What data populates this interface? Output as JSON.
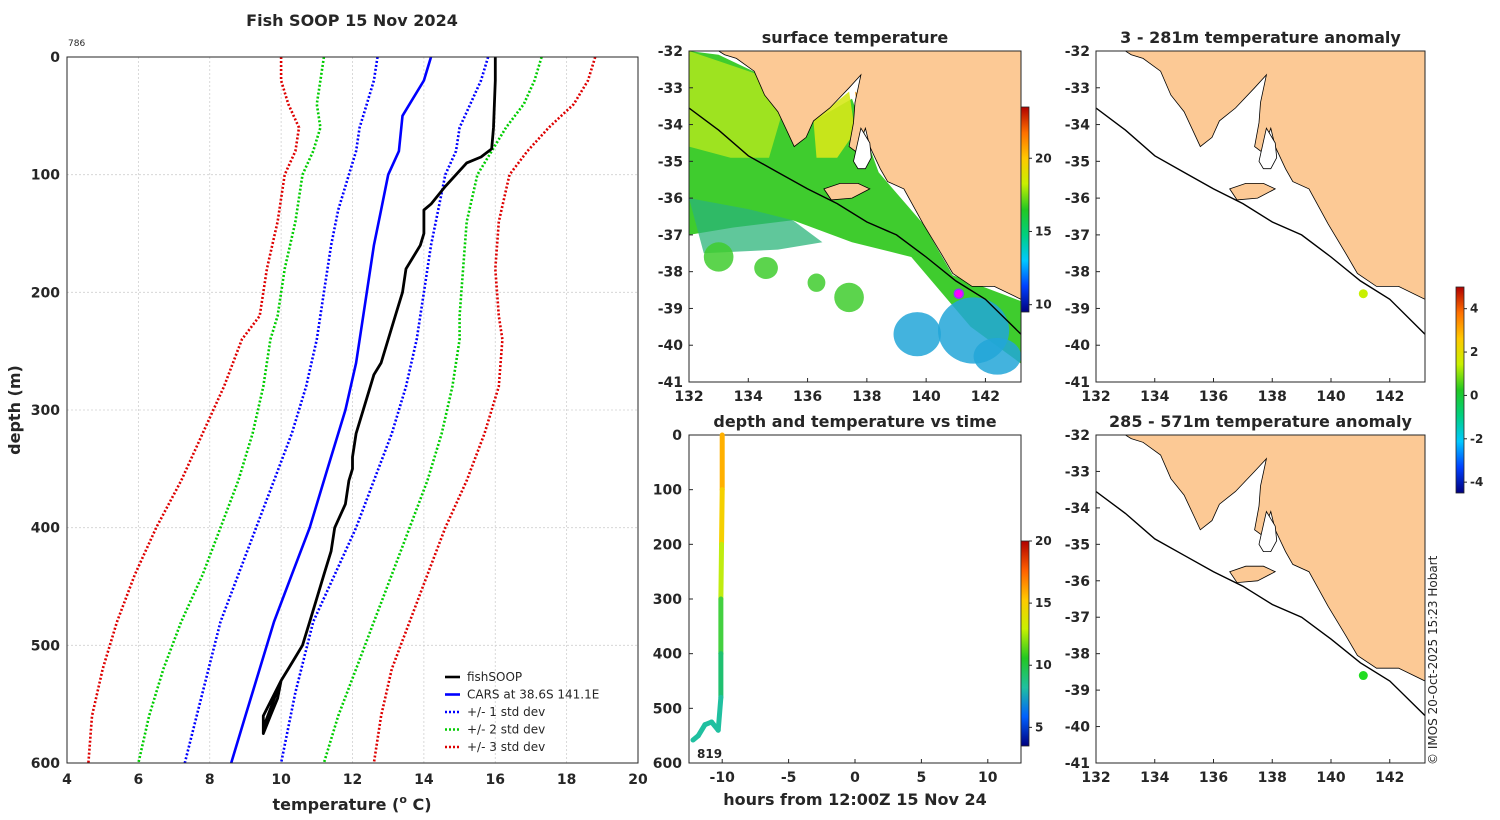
{
  "chart_data": [
    {
      "type": "line",
      "title": "Fish SOOP 15 Nov 2024",
      "xlabel": "temperature (",
      "xlabel_sup": "o",
      "xlabel_tail": " C)",
      "ylabel": "depth (m)",
      "xlim": [
        4,
        20
      ],
      "ylim": [
        600,
        0
      ],
      "xticks": [
        "4",
        "6",
        "8",
        "10",
        "12",
        "14",
        "16",
        "18",
        "20"
      ],
      "yticks": [
        "0",
        "100",
        "200",
        "300",
        "400",
        "500",
        "600"
      ],
      "corner_label": "786",
      "grid": true,
      "legend_position": "bottom-right",
      "series": [
        {
          "name": "fishSOOP",
          "color": "#000000",
          "style": "solid",
          "x": [
            16,
            16,
            15.95,
            15.9,
            15.6,
            15.2,
            14.9,
            14.6,
            14.2,
            14.0,
            14.0,
            13.9,
            13.7,
            13.5,
            13.4,
            13.2,
            13.0,
            12.8,
            12.6,
            12.4,
            12.1,
            12.0,
            12.0,
            11.9,
            11.8,
            11.5,
            11.4,
            11.2,
            11.0,
            10.8,
            10.6,
            10.4,
            10.2,
            10.0,
            9.9,
            9.7,
            9.5,
            9.5,
            10.0,
            9.5
          ],
          "y": [
            0,
            20,
            60,
            78,
            85,
            90,
            100,
            110,
            125,
            130,
            150,
            160,
            170,
            180,
            200,
            220,
            240,
            260,
            270,
            290,
            320,
            340,
            350,
            360,
            380,
            400,
            420,
            440,
            460,
            480,
            500,
            510,
            520,
            530,
            545,
            560,
            575,
            560,
            530,
            570
          ]
        },
        {
          "name": "CARS at 38.6S 141.1E",
          "color": "#0000ff",
          "style": "solid",
          "x": [
            14.2,
            14.0,
            13.6,
            13.4,
            13.3,
            13.0,
            12.8,
            12.6,
            12.4,
            12.1,
            11.8,
            11.3,
            10.8,
            10.3,
            9.8,
            9.4,
            9.0,
            8.6
          ],
          "y": [
            0,
            20,
            40,
            50,
            80,
            100,
            130,
            160,
            200,
            260,
            300,
            350,
            400,
            440,
            480,
            520,
            560,
            600
          ]
        },
        {
          "name": "+/- 1 std dev",
          "color": "#0000ff",
          "style": "dotted",
          "x": [
            15.8,
            15.6,
            15.3,
            15.0,
            14.8,
            14.5,
            14.3,
            14.0,
            13.8,
            13.4,
            13.0,
            12.6,
            12.1,
            11.4,
            10.8,
            10.3,
            10.0,
            12.7,
            12.6,
            12.4,
            12.2,
            12.0,
            11.8,
            11.6,
            11.4,
            11.2,
            10.9,
            10.6,
            10.1,
            9.5,
            8.9,
            8.4,
            7.9,
            7.4,
            7.2
          ],
          "y": [
            0,
            20,
            40,
            60,
            80,
            100,
            150,
            200,
            250,
            300,
            350,
            400,
            450,
            500,
            550,
            600,
            600,
            0,
            20,
            40,
            60,
            80,
            100,
            150,
            200,
            250,
            300,
            350,
            400,
            450,
            500,
            550,
            580,
            600,
            600
          ],
          "split_at": 17
        }
      ],
      "legend": [
        "fishSOOP",
        "CARS at 38.6S 141.1E",
        "+/- 1 std dev",
        "+/- 2 std dev",
        "+/- 3 std dev"
      ],
      "legend_colors": [
        "#000000",
        "#0000ff",
        "#0000ff",
        "#00cc00",
        "#dd0000"
      ],
      "envelopes": {
        "1": {
          "left_x": [
            12.7,
            12.6,
            12.4,
            12.2,
            12.1,
            11.9,
            11.6,
            11.4,
            11.2,
            11.0,
            10.7,
            10.3,
            9.8,
            9.3,
            8.8,
            8.3,
            7.8,
            7.3
          ],
          "right_x": [
            15.8,
            15.6,
            15.3,
            15.0,
            14.9,
            14.6,
            14.4,
            14.2,
            14.0,
            13.8,
            13.5,
            13.1,
            12.6,
            12.1,
            11.5,
            10.9,
            10.4,
            10.0
          ],
          "y": [
            0,
            20,
            40,
            60,
            80,
            100,
            130,
            160,
            200,
            240,
            280,
            320,
            360,
            400,
            440,
            480,
            540,
            600
          ]
        },
        "2": {
          "left_x": [
            11.2,
            11.1,
            11.0,
            11.1,
            10.9,
            10.6,
            10.4,
            10.1,
            9.9,
            9.7,
            9.5,
            9.2,
            8.8,
            8.3,
            7.8,
            7.2,
            6.7,
            6.3,
            6.0
          ],
          "right_x": [
            17.3,
            17.1,
            16.8,
            16.3,
            15.9,
            15.5,
            15.2,
            15.1,
            15.0,
            15.0,
            14.8,
            14.5,
            14.1,
            13.6,
            13.1,
            12.6,
            12.1,
            11.6,
            11.2
          ],
          "y": [
            0,
            20,
            40,
            60,
            80,
            100,
            140,
            180,
            220,
            240,
            280,
            320,
            360,
            400,
            440,
            480,
            520,
            560,
            600
          ]
        },
        "3": {
          "left_x": [
            10.0,
            10.0,
            10.2,
            10.5,
            10.4,
            10.1,
            9.9,
            9.6,
            9.4,
            8.9,
            8.4,
            7.8,
            7.2,
            6.5,
            5.9,
            5.4,
            5.0,
            4.7,
            4.6
          ],
          "right_x": [
            18.8,
            18.6,
            18.2,
            17.5,
            16.9,
            16.4,
            16.1,
            16.0,
            16.1,
            16.2,
            16.1,
            15.7,
            15.2,
            14.6,
            14.1,
            13.6,
            13.1,
            12.8,
            12.6
          ],
          "y": [
            0,
            20,
            40,
            60,
            80,
            100,
            140,
            180,
            220,
            240,
            280,
            320,
            360,
            400,
            440,
            480,
            520,
            560,
            600
          ]
        }
      }
    },
    {
      "type": "heatmap",
      "title": "surface temperature",
      "xticks": [
        "132",
        "134",
        "136",
        "138",
        "140",
        "142"
      ],
      "yticks": [
        "-32",
        "-33",
        "-34",
        "-35",
        "-36",
        "-37",
        "-38",
        "-39",
        "-40",
        "-41"
      ],
      "xlim": [
        132,
        143.2
      ],
      "ylim": [
        -41,
        -32
      ],
      "colorbar_ticks": [
        "10",
        "15",
        "20"
      ],
      "colorbar_range": [
        9.5,
        23.5
      ],
      "marker": {
        "lon": 141.1,
        "lat": -38.6,
        "color": "#ff00ff"
      }
    },
    {
      "type": "scatter",
      "title": "depth and temperature vs time",
      "xlabel": "hours from 12:00Z 15 Nov 24",
      "xticks": [
        "-10",
        "-5",
        "0",
        "5",
        "10"
      ],
      "yticks": [
        "0",
        "100",
        "200",
        "300",
        "400",
        "500",
        "600"
      ],
      "xlim": [
        -12.5,
        12.5
      ],
      "ylim": [
        600,
        0
      ],
      "annotation": "819",
      "colorbar_ticks": [
        "5",
        "10",
        "15",
        "20"
      ],
      "colorbar_range": [
        3.5,
        20
      ]
    },
    {
      "type": "heatmap",
      "title": "3 - 281m temperature anomaly",
      "xticks": [
        "132",
        "134",
        "136",
        "138",
        "140",
        "142"
      ],
      "yticks": [
        "-32",
        "-33",
        "-34",
        "-35",
        "-36",
        "-37",
        "-38",
        "-39",
        "-40",
        "-41"
      ],
      "xlim": [
        132,
        143.2
      ],
      "ylim": [
        -41,
        -32
      ],
      "marker": {
        "lon": 141.1,
        "lat": -38.6,
        "color": "#c8f000"
      }
    },
    {
      "type": "heatmap",
      "title": "285 - 571m temperature anomaly",
      "xticks": [
        "132",
        "134",
        "136",
        "138",
        "140",
        "142"
      ],
      "yticks": [
        "-32",
        "-33",
        "-34",
        "-35",
        "-36",
        "-37",
        "-38",
        "-39",
        "-40",
        "-41"
      ],
      "xlim": [
        132,
        143.2
      ],
      "ylim": [
        -41,
        -32
      ],
      "marker": {
        "lon": 141.1,
        "lat": -38.6,
        "color": "#22dd22"
      }
    }
  ],
  "anomaly_colorbar": {
    "ticks": [
      "4",
      "2",
      "0",
      "-2",
      "-4"
    ],
    "range": [
      -4.5,
      5
    ]
  },
  "credit": "© IMOS 20-Oct-2025 15:23 Hobart",
  "colors": {
    "land": "#fcc995",
    "grid": "#d0d0d0"
  }
}
